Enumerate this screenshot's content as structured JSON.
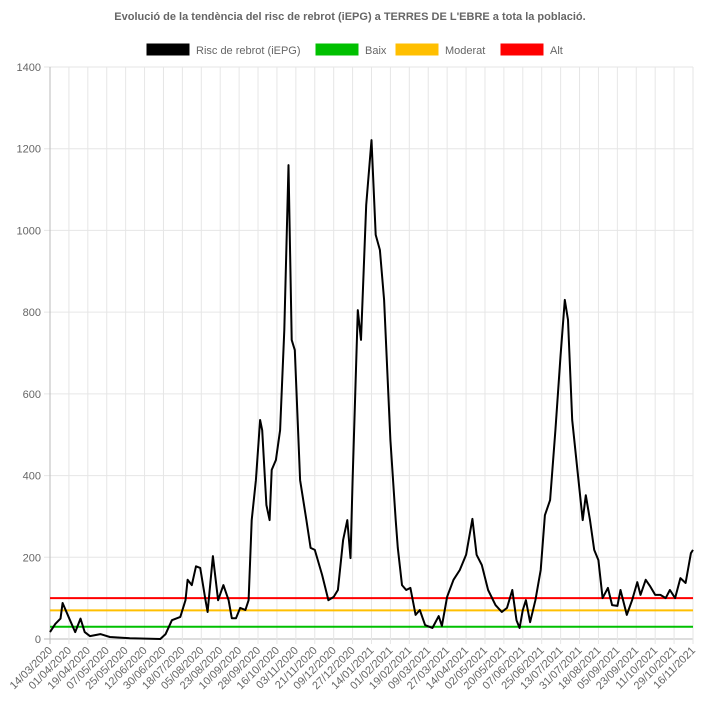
{
  "chart_data": {
    "type": "line",
    "title": "Evolució de la tendència del risc de rebrot (iEPG) a TERRES DE L'EBRE a tota la població.",
    "xlabel": "",
    "ylabel": "",
    "ylim": [
      0,
      1400
    ],
    "yticks": [
      0,
      200,
      400,
      600,
      800,
      1000,
      1200,
      1400
    ],
    "grid": true,
    "legend_position": "top",
    "x_unit": "days since 14/03/2020",
    "xlim": [
      0,
      612
    ],
    "xtick_labels": [
      "14/03/2020",
      "01/04/2020",
      "19/04/2020",
      "07/05/2020",
      "25/05/2020",
      "12/06/2020",
      "30/06/2020",
      "18/07/2020",
      "05/08/2020",
      "23/08/2020",
      "10/09/2020",
      "28/09/2020",
      "16/10/2020",
      "03/11/2020",
      "21/11/2020",
      "09/12/2020",
      "27/12/2020",
      "14/01/2021",
      "01/02/2021",
      "19/02/2021",
      "09/03/2021",
      "27/03/2021",
      "14/04/2021",
      "02/05/2021",
      "20/05/2021",
      "07/06/2021",
      "25/06/2021",
      "13/07/2021",
      "31/07/2021",
      "18/08/2021",
      "05/09/2021",
      "23/09/2021",
      "11/10/2021",
      "29/10/2021",
      "16/11/2021"
    ],
    "xtick_step_days": 18,
    "series": [
      {
        "name": "Risc de rebrot (iEPG)",
        "color": "#000000",
        "points": [
          [
            0,
            17
          ],
          [
            5,
            37
          ],
          [
            10,
            50
          ],
          [
            12,
            88
          ],
          [
            19,
            46
          ],
          [
            24,
            17
          ],
          [
            29,
            50
          ],
          [
            33,
            17
          ],
          [
            38,
            7
          ],
          [
            48,
            12
          ],
          [
            57,
            5
          ],
          [
            76,
            2
          ],
          [
            105,
            0
          ],
          [
            110,
            12
          ],
          [
            116,
            46
          ],
          [
            124,
            54
          ],
          [
            129,
            95
          ],
          [
            131,
            145
          ],
          [
            135,
            132
          ],
          [
            139,
            178
          ],
          [
            143,
            174
          ],
          [
            148,
            95
          ],
          [
            150,
            66
          ],
          [
            155,
            203
          ],
          [
            160,
            95
          ],
          [
            165,
            132
          ],
          [
            170,
            95
          ],
          [
            173,
            51
          ],
          [
            177,
            51
          ],
          [
            181,
            76
          ],
          [
            186,
            71
          ],
          [
            189,
            95
          ],
          [
            192,
            291
          ],
          [
            196,
            389
          ],
          [
            200,
            536
          ],
          [
            202,
            511
          ],
          [
            206,
            328
          ],
          [
            209,
            291
          ],
          [
            211,
            414
          ],
          [
            215,
            438
          ],
          [
            219,
            511
          ],
          [
            223,
            756
          ],
          [
            227,
            1160
          ],
          [
            230,
            732
          ],
          [
            233,
            707
          ],
          [
            238,
            389
          ],
          [
            244,
            291
          ],
          [
            248,
            223
          ],
          [
            252,
            218
          ],
          [
            259,
            157
          ],
          [
            265,
            95
          ],
          [
            270,
            103
          ],
          [
            274,
            120
          ],
          [
            279,
            242
          ],
          [
            283,
            291
          ],
          [
            286,
            198
          ],
          [
            288,
            389
          ],
          [
            293,
            805
          ],
          [
            296,
            732
          ],
          [
            301,
            1062
          ],
          [
            306,
            1221
          ],
          [
            310,
            989
          ],
          [
            314,
            952
          ],
          [
            318,
            830
          ],
          [
            324,
            487
          ],
          [
            329,
            291
          ],
          [
            331,
            223
          ],
          [
            335,
            132
          ],
          [
            339,
            120
          ],
          [
            343,
            125
          ],
          [
            348,
            59
          ],
          [
            352,
            71
          ],
          [
            357,
            34
          ],
          [
            364,
            27
          ],
          [
            370,
            56
          ],
          [
            373,
            32
          ],
          [
            378,
            103
          ],
          [
            384,
            145
          ],
          [
            390,
            169
          ],
          [
            396,
            206
          ],
          [
            402,
            294
          ],
          [
            406,
            206
          ],
          [
            411,
            181
          ],
          [
            417,
            120
          ],
          [
            424,
            83
          ],
          [
            430,
            66
          ],
          [
            435,
            76
          ],
          [
            440,
            120
          ],
          [
            444,
            46
          ],
          [
            447,
            27
          ],
          [
            450,
            71
          ],
          [
            453,
            95
          ],
          [
            457,
            41
          ],
          [
            462,
            95
          ],
          [
            467,
            169
          ],
          [
            471,
            303
          ],
          [
            476,
            340
          ],
          [
            481,
            511
          ],
          [
            486,
            695
          ],
          [
            490,
            830
          ],
          [
            493,
            781
          ],
          [
            497,
            536
          ],
          [
            502,
            414
          ],
          [
            507,
            291
          ],
          [
            510,
            352
          ],
          [
            514,
            291
          ],
          [
            518,
            218
          ],
          [
            522,
            193
          ],
          [
            526,
            100
          ],
          [
            531,
            125
          ],
          [
            535,
            83
          ],
          [
            540,
            81
          ],
          [
            543,
            120
          ],
          [
            549,
            59
          ],
          [
            554,
            95
          ],
          [
            559,
            139
          ],
          [
            562,
            108
          ],
          [
            567,
            145
          ],
          [
            571,
            130
          ],
          [
            576,
            108
          ],
          [
            581,
            108
          ],
          [
            586,
            100
          ],
          [
            590,
            120
          ],
          [
            595,
            100
          ],
          [
            600,
            149
          ],
          [
            605,
            137
          ],
          [
            610,
            210
          ],
          [
            612,
            218
          ]
        ]
      },
      {
        "name": "Baix",
        "color": "#00c000",
        "constant": 30
      },
      {
        "name": "Moderat",
        "color": "#ffbf00",
        "constant": 70
      },
      {
        "name": "Alt",
        "color": "#ff0000",
        "constant": 100
      }
    ]
  }
}
